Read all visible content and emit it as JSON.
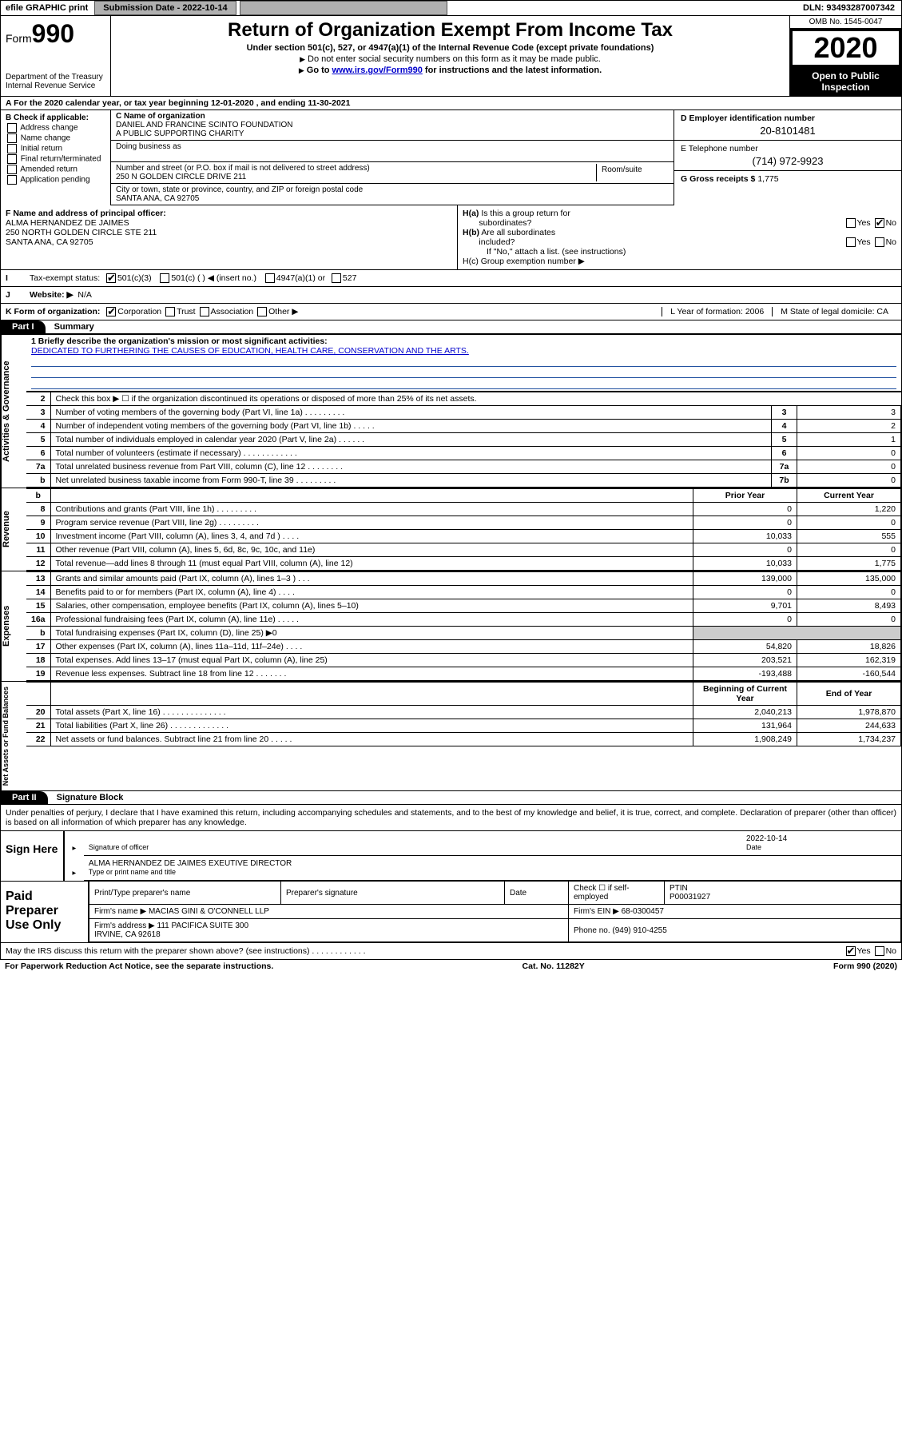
{
  "topbar": {
    "efile": "efile GRAPHIC print",
    "submission_label": "Submission Date - 2022-10-14",
    "dln": "DLN: 93493287007342"
  },
  "header": {
    "form_prefix": "Form",
    "form_no": "990",
    "dept": "Department of the Treasury\nInternal Revenue Service",
    "title": "Return of Organization Exempt From Income Tax",
    "sub1": "Under section 501(c), 527, or 4947(a)(1) of the Internal Revenue Code (except private foundations)",
    "sub2a": "Do not enter social security numbers on this form as it may be made public.",
    "sub2b_pre": "Go to ",
    "sub2b_link": "www.irs.gov/Form990",
    "sub2b_post": " for instructions and the latest information.",
    "omb": "OMB No. 1545-0047",
    "year": "2020",
    "open": "Open to Public Inspection"
  },
  "row_a": "A For the 2020 calendar year, or tax year beginning 12-01-2020   , and ending 11-30-2021",
  "col_b": {
    "title": "B Check if applicable:",
    "items": [
      "Address change",
      "Name change",
      "Initial return",
      "Final return/terminated",
      "Amended return",
      "Application pending"
    ]
  },
  "col_c": {
    "name_label": "C Name of organization",
    "name": "DANIEL AND FRANCINE SCINTO FOUNDATION\nA PUBLIC SUPPORTING CHARITY",
    "dba_label": "Doing business as",
    "street_label": "Number and street (or P.O. box if mail is not delivered to street address)",
    "room_label": "Room/suite",
    "street": "250 N GOLDEN CIRCLE DRIVE 211",
    "city_label": "City or town, state or province, country, and ZIP or foreign postal code",
    "city": "SANTA ANA, CA  92705"
  },
  "col_d": {
    "label": "D Employer identification number",
    "value": "20-8101481"
  },
  "col_e": {
    "label": "E Telephone number",
    "value": "(714) 972-9923"
  },
  "col_g": {
    "label": "G Gross receipts $",
    "value": "1,775"
  },
  "row_f": {
    "label": "F  Name and address of principal officer:",
    "val": "ALMA HERNANDEZ DE JAIMES\n250 NORTH GOLDEN CIRCLE STE 211\nSANTA ANA, CA  92705"
  },
  "row_h": {
    "ha": "H(a)  Is this a group return for subordinates?",
    "hb": "H(b)  Are all subordinates included?",
    "hb_note": "If \"No,\" attach a list. (see instructions)",
    "hc": "H(c)  Group exemption number ▶"
  },
  "row_i": {
    "label": "Tax-exempt status:",
    "opts": [
      "501(c)(3)",
      "501(c) (  ) ◀ (insert no.)",
      "4947(a)(1) or",
      "527"
    ]
  },
  "row_j": {
    "label": "Website: ▶",
    "value": "N/A"
  },
  "row_k": {
    "label": "K Form of organization:",
    "opts": [
      "Corporation",
      "Trust",
      "Association",
      "Other ▶"
    ],
    "l": "L Year of formation: 2006",
    "m": "M State of legal domicile: CA"
  },
  "part1": {
    "hdr": "Part I",
    "title": "Summary"
  },
  "mission": {
    "label": "1  Briefly describe the organization's mission or most significant activities:",
    "text": "DEDICATED TO FURTHERING THE CAUSES OF EDUCATION, HEALTH CARE, CONSERVATION AND THE ARTS."
  },
  "sections": {
    "gov": {
      "label": "Activities & Governance",
      "rows": [
        {
          "n": "2",
          "t": "Check this box ▶ ☐  if the organization discontinued its operations or disposed of more than 25% of its net assets."
        },
        {
          "n": "3",
          "t": "Number of voting members of the governing body (Part VI, line 1a)  .   .   .   .   .   .   .   .   .",
          "k": "3",
          "v": "3"
        },
        {
          "n": "4",
          "t": "Number of independent voting members of the governing body (Part VI, line 1b)  .   .   .   .   .",
          "k": "4",
          "v": "2"
        },
        {
          "n": "5",
          "t": "Total number of individuals employed in calendar year 2020 (Part V, line 2a)  .   .   .   .   .   .",
          "k": "5",
          "v": "1"
        },
        {
          "n": "6",
          "t": "Total number of volunteers (estimate if necessary)  .   .   .   .   .   .   .   .   .   .   .   .",
          "k": "6",
          "v": "0"
        },
        {
          "n": "7a",
          "t": "Total unrelated business revenue from Part VIII, column (C), line 12  .   .   .   .   .   .   .   .",
          "k": "7a",
          "v": "0"
        },
        {
          "n": "b",
          "t": "Net unrelated business taxable income from Form 990-T, line 39  .   .   .   .   .   .   .   .   .",
          "k": "7b",
          "v": "0"
        }
      ]
    },
    "rev": {
      "label": "Revenue",
      "hdr": [
        "Prior Year",
        "Current Year"
      ],
      "rows": [
        {
          "n": "8",
          "t": "Contributions and grants (Part VIII, line 1h)  .   .   .   .   .   .   .   .   .",
          "p": "0",
          "c": "1,220"
        },
        {
          "n": "9",
          "t": "Program service revenue (Part VIII, line 2g)  .   .   .   .   .   .   .   .   .",
          "p": "0",
          "c": "0"
        },
        {
          "n": "10",
          "t": "Investment income (Part VIII, column (A), lines 3, 4, and 7d )  .   .   .   .",
          "p": "10,033",
          "c": "555"
        },
        {
          "n": "11",
          "t": "Other revenue (Part VIII, column (A), lines 5, 6d, 8c, 9c, 10c, and 11e)",
          "p": "0",
          "c": "0"
        },
        {
          "n": "12",
          "t": "Total revenue—add lines 8 through 11 (must equal Part VIII, column (A), line 12)",
          "p": "10,033",
          "c": "1,775"
        }
      ]
    },
    "exp": {
      "label": "Expenses",
      "rows": [
        {
          "n": "13",
          "t": "Grants and similar amounts paid (Part IX, column (A), lines 1–3 )  .   .   .",
          "p": "139,000",
          "c": "135,000"
        },
        {
          "n": "14",
          "t": "Benefits paid to or for members (Part IX, column (A), line 4)  .   .   .   .",
          "p": "0",
          "c": "0"
        },
        {
          "n": "15",
          "t": "Salaries, other compensation, employee benefits (Part IX, column (A), lines 5–10)",
          "p": "9,701",
          "c": "8,493"
        },
        {
          "n": "16a",
          "t": "Professional fundraising fees (Part IX, column (A), line 11e)  .   .   .   .   .",
          "p": "0",
          "c": "0"
        },
        {
          "n": "b",
          "t": "Total fundraising expenses (Part IX, column (D), line 25) ▶0",
          "grey": true
        },
        {
          "n": "17",
          "t": "Other expenses (Part IX, column (A), lines 11a–11d, 11f–24e)  .   .   .   .",
          "p": "54,820",
          "c": "18,826"
        },
        {
          "n": "18",
          "t": "Total expenses. Add lines 13–17 (must equal Part IX, column (A), line 25)",
          "p": "203,521",
          "c": "162,319"
        },
        {
          "n": "19",
          "t": "Revenue less expenses. Subtract line 18 from line 12  .   .   .   .   .   .   .",
          "p": "-193,488",
          "c": "-160,544"
        }
      ]
    },
    "net": {
      "label": "Net Assets or Fund Balances",
      "hdr": [
        "Beginning of Current Year",
        "End of Year"
      ],
      "rows": [
        {
          "n": "20",
          "t": "Total assets (Part X, line 16)  .   .   .   .   .   .   .   .   .   .   .   .   .   .",
          "p": "2,040,213",
          "c": "1,978,870"
        },
        {
          "n": "21",
          "t": "Total liabilities (Part X, line 26)  .   .   .   .   .   .   .   .   .   .   .   .   .",
          "p": "131,964",
          "c": "244,633"
        },
        {
          "n": "22",
          "t": "Net assets or fund balances. Subtract line 21 from line 20  .   .   .   .   .",
          "p": "1,908,249",
          "c": "1,734,237"
        }
      ]
    }
  },
  "part2": {
    "hdr": "Part II",
    "title": "Signature Block"
  },
  "perjury": "Under penalties of perjury, I declare that I have examined this return, including accompanying schedules and statements, and to the best of my knowledge and belief, it is true, correct, and complete. Declaration of preparer (other than officer) is based on all information of which preparer has any knowledge.",
  "sign": {
    "l": "Sign Here",
    "sig_label": "Signature of officer",
    "date_label": "Date",
    "date": "2022-10-14",
    "name": "ALMA HERNANDEZ DE JAIMES  EXEUTIVE DIRECTOR",
    "name_label": "Type or print name and title"
  },
  "prep": {
    "l": "Paid Preparer Use Only",
    "r1": [
      "Print/Type preparer's name",
      "Preparer's signature",
      "Date",
      "Check ☐ if self-employed",
      "PTIN\nP00031927"
    ],
    "r2a": "Firm's name   ▶",
    "r2b": "MACIAS GINI & O'CONNELL LLP",
    "r2c": "Firm's EIN ▶ 68-0300457",
    "r3a": "Firm's address ▶",
    "r3b": "111 PACIFICA SUITE 300\nIRVINE, CA  92618",
    "r3c": "Phone no. (949) 910-4255"
  },
  "discuss": "May the IRS discuss this return with the preparer shown above? (see instructions)  .   .   .   .   .   .   .   .   .   .   .   .",
  "foot": {
    "l": "For Paperwork Reduction Act Notice, see the separate instructions.",
    "c": "Cat. No. 11282Y",
    "r": "Form 990 (2020)"
  }
}
